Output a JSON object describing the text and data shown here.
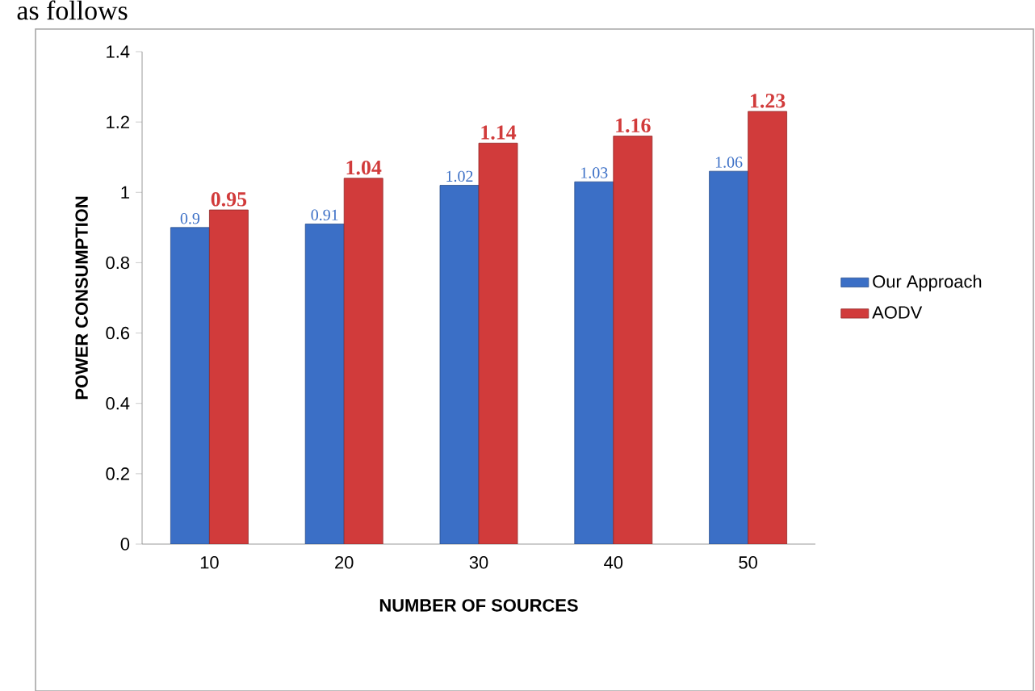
{
  "chart_data": {
    "type": "bar",
    "xlabel": "NUMBER OF SOURCES",
    "ylabel": "POWER CONSUMPTION",
    "categories": [
      "10",
      "20",
      "30",
      "40",
      "50"
    ],
    "series": [
      {
        "name": "Our Approach",
        "color": "#3b6fc6",
        "values": [
          0.9,
          0.91,
          1.02,
          1.03,
          1.06
        ]
      },
      {
        "name": "AODV",
        "color": "#d13b3b",
        "values": [
          0.95,
          1.04,
          1.14,
          1.16,
          1.23
        ]
      }
    ],
    "ylim": [
      0,
      1.4
    ],
    "yticks": [
      0,
      0.2,
      0.4,
      0.6,
      0.8,
      1,
      1.2,
      1.4
    ],
    "data_labels": true,
    "grid": false,
    "legend": "right",
    "annotations": [
      "as follows"
    ]
  }
}
